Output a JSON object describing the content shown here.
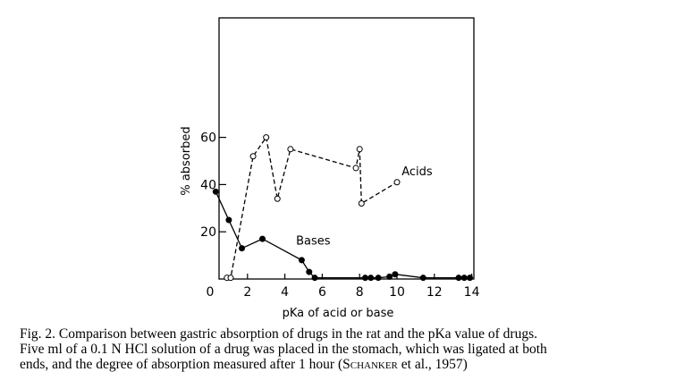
{
  "chart_data": {
    "type": "line",
    "xlabel": "pKa of acid or base",
    "ylabel": "% absorbed",
    "xlim": [
      0,
      14
    ],
    "ylim": [
      -1,
      70
    ],
    "x_ticks": [
      0,
      2,
      4,
      6,
      8,
      10,
      12,
      14
    ],
    "y_ticks": [
      20,
      40,
      60
    ],
    "grid": false,
    "legend": "none (direct labels)",
    "series": [
      {
        "name": "Acids",
        "style": "dashed",
        "marker": "open-circle",
        "x": [
          0.9,
          1.1,
          2.3,
          3.0,
          3.6,
          4.3,
          7.8,
          8.0,
          8.1,
          10.0
        ],
        "y": [
          0.5,
          0.5,
          52,
          60,
          34,
          55,
          47,
          55,
          32,
          41
        ]
      },
      {
        "name": "Bases",
        "style": "solid",
        "marker": "filled-circle",
        "x": [
          0.3,
          1.0,
          1.7,
          2.8,
          4.9,
          5.3,
          5.6,
          8.3,
          8.6,
          9.0,
          9.6,
          9.9,
          11.4,
          13.3,
          13.6,
          13.9
        ],
        "y": [
          37,
          25,
          13,
          17,
          8,
          3,
          0.5,
          0.5,
          0.5,
          0.5,
          1,
          2,
          0.5,
          0.5,
          0.5,
          0.5
        ]
      }
    ]
  },
  "caption": {
    "line1": "Fig. 2. Comparison between gastric absorption of drugs in the rat and the pKa value of drugs.",
    "line2": "Five ml of a 0.1 N HCl solution of a drug was placed in the stomach, which was ligated at both",
    "line3_start": "ends, and the degree of absorption measured after 1 hour (",
    "line3_author": "Schanker",
    "line3_end": " et al., 1957)"
  }
}
